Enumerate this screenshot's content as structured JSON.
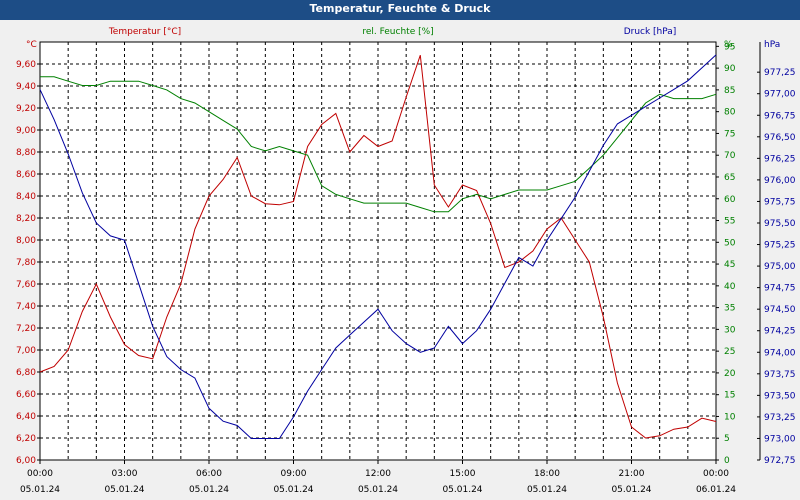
{
  "window": {
    "title": "Temperatur, Feuchte & Druck"
  },
  "colors": {
    "temperature": "#c00000",
    "humidity": "#008000",
    "pressure": "#0000a0",
    "title_bar": "#1d4d86",
    "background": "#f0f0f0",
    "plot_area": "#ffffff"
  },
  "chart_data": {
    "type": "line",
    "title": "Temperatur, Feuchte & Druck",
    "grid": true,
    "legend": "top",
    "x_ticks": [
      {
        "time": "00:00",
        "date": "05.01.24"
      },
      {
        "time": "03:00",
        "date": "05.01.24"
      },
      {
        "time": "06:00",
        "date": "05.01.24"
      },
      {
        "time": "09:00",
        "date": "05.01.24"
      },
      {
        "time": "12:00",
        "date": "05.01.24"
      },
      {
        "time": "15:00",
        "date": "05.01.24"
      },
      {
        "time": "18:00",
        "date": "05.01.24"
      },
      {
        "time": "21:00",
        "date": "05.01.24"
      },
      {
        "time": "00:00",
        "date": "06.01.24"
      }
    ],
    "x_range_hours": [
      0,
      24
    ],
    "axes": {
      "temperature": {
        "unit": "°C",
        "ylim": [
          6.0,
          9.8
        ],
        "ticks": [
          "6,00",
          "6,20",
          "6,40",
          "6,60",
          "6,80",
          "7,00",
          "7,20",
          "7,40",
          "7,60",
          "7,80",
          "8,00",
          "8,20",
          "8,40",
          "8,60",
          "8,80",
          "9,00",
          "9,20",
          "9,40",
          "9,60"
        ]
      },
      "humidity": {
        "unit": "%",
        "ylim": [
          0,
          96
        ],
        "ticks": [
          "0",
          "5",
          "10",
          "15",
          "20",
          "25",
          "30",
          "35",
          "40",
          "45",
          "50",
          "55",
          "60",
          "65",
          "70",
          "75",
          "80",
          "85",
          "90",
          "95"
        ]
      },
      "pressure": {
        "unit": "hPa",
        "ylim": [
          972.75,
          977.6
        ],
        "ticks": [
          "972,75",
          "973,00",
          "973,25",
          "973,50",
          "973,75",
          "974,00",
          "974,25",
          "974,50",
          "974,75",
          "975,00",
          "975,25",
          "975,50",
          "975,75",
          "976,00",
          "976,25",
          "976,50",
          "976,75",
          "977,00",
          "977,25"
        ]
      }
    },
    "series": [
      {
        "name": "Temperatur [°C]",
        "axis": "temperature",
        "x": [
          0,
          0.5,
          1,
          1.5,
          2,
          2.5,
          3,
          3.5,
          4,
          4.5,
          5,
          5.5,
          6,
          6.5,
          7,
          7.5,
          8,
          8.5,
          9,
          9.5,
          10,
          10.5,
          11,
          11.5,
          12,
          12.5,
          13,
          13.5,
          14,
          14.5,
          15,
          15.5,
          16,
          16.5,
          17,
          17.5,
          18,
          18.5,
          19,
          19.5,
          20,
          20.5,
          21,
          21.5,
          22,
          22.5,
          23,
          23.5,
          24
        ],
        "values": [
          6.8,
          6.85,
          7.0,
          7.35,
          7.6,
          7.3,
          7.05,
          6.95,
          6.92,
          7.3,
          7.6,
          8.1,
          8.4,
          8.55,
          8.75,
          8.4,
          8.33,
          8.32,
          8.35,
          8.85,
          9.05,
          9.15,
          8.8,
          8.95,
          8.85,
          8.9,
          9.3,
          9.68,
          8.5,
          8.3,
          8.5,
          8.45,
          8.15,
          7.75,
          7.8,
          7.9,
          8.1,
          8.2,
          8.0,
          7.8,
          7.3,
          6.7,
          6.3,
          6.2,
          6.22,
          6.28,
          6.3,
          6.38,
          6.35
        ]
      },
      {
        "name": "rel. Feuchte [%]",
        "axis": "humidity",
        "x": [
          0,
          0.5,
          1,
          1.5,
          2,
          2.5,
          3,
          3.5,
          4,
          4.5,
          5,
          5.5,
          6,
          6.5,
          7,
          7.5,
          8,
          8.5,
          9,
          9.5,
          10,
          10.5,
          11,
          11.5,
          12,
          12.5,
          13,
          13.5,
          14,
          14.5,
          15,
          15.5,
          16,
          16.5,
          17,
          17.5,
          18,
          18.5,
          19,
          19.5,
          20,
          20.5,
          21,
          21.5,
          22,
          22.5,
          23,
          23.5,
          24
        ],
        "values": [
          88,
          88,
          87,
          86,
          86,
          87,
          87,
          87,
          86,
          85,
          83,
          82,
          80,
          78,
          76,
          72,
          71,
          72,
          71,
          70,
          63,
          61,
          60,
          59,
          59,
          59,
          59,
          58,
          57,
          57,
          60,
          61,
          60,
          61,
          62,
          62,
          62,
          63,
          64,
          67,
          70,
          74,
          78,
          82,
          84,
          83,
          83,
          83,
          84
        ]
      },
      {
        "name": "Druck [hPa]",
        "axis": "pressure",
        "x": [
          0,
          0.5,
          1,
          1.5,
          2,
          2.5,
          3,
          3.5,
          4,
          4.5,
          5,
          5.5,
          6,
          6.5,
          7,
          7.5,
          8,
          8.5,
          9,
          9.5,
          10,
          10.5,
          11,
          11.5,
          12,
          12.5,
          13,
          13.5,
          14,
          14.5,
          15,
          15.5,
          16,
          16.5,
          17,
          17.5,
          18,
          18.5,
          19,
          19.5,
          20,
          20.5,
          21,
          21.5,
          22,
          22.5,
          23,
          23.5,
          24
        ],
        "values": [
          977.05,
          976.7,
          976.3,
          975.85,
          975.5,
          975.35,
          975.3,
          974.8,
          974.3,
          973.95,
          973.8,
          973.7,
          973.35,
          973.2,
          973.15,
          973.0,
          973.0,
          973.0,
          973.25,
          973.55,
          973.8,
          974.05,
          974.2,
          974.35,
          974.5,
          974.25,
          974.1,
          974.0,
          974.05,
          974.3,
          974.1,
          974.25,
          974.5,
          974.8,
          975.1,
          975.0,
          975.3,
          975.55,
          975.8,
          976.1,
          976.4,
          976.65,
          976.75,
          976.85,
          976.95,
          977.05,
          977.15,
          977.3,
          977.45
        ]
      }
    ]
  }
}
